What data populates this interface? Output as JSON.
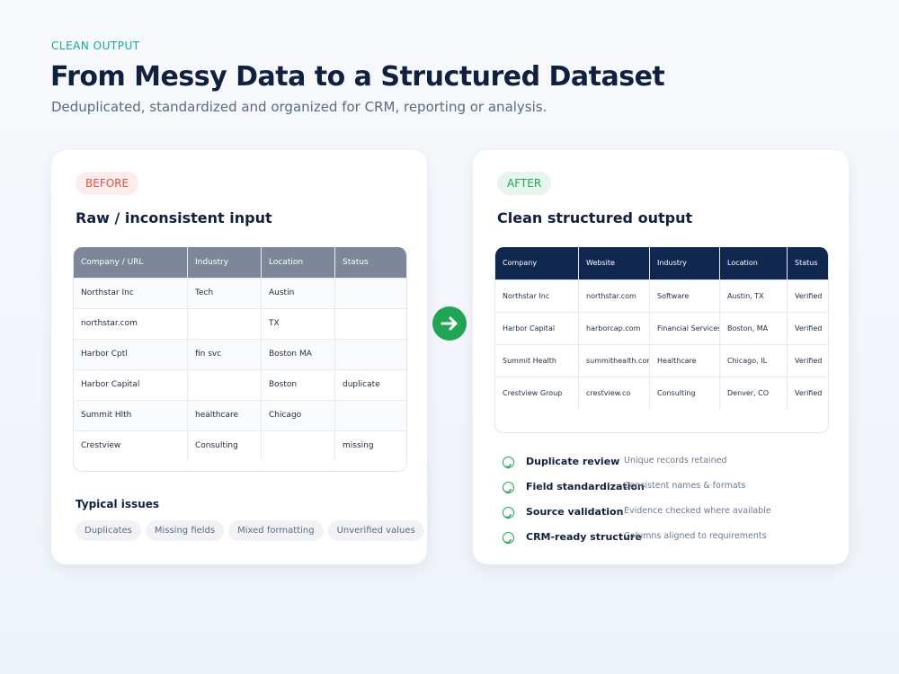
{
  "header": {
    "eyebrow": "CLEAN OUTPUT",
    "title": "From Messy Data to a Structured Dataset",
    "subtitle": "Deduplicated, standardized and organized for CRM, reporting or analysis."
  },
  "before": {
    "badge": "BEFORE",
    "title": "Raw / inconsistent input",
    "table": {
      "columns": [
        "Company / URL",
        "Industry",
        "Location",
        "Status"
      ],
      "rows": [
        [
          "Northstar Inc",
          "Tech",
          "Austin",
          null
        ],
        [
          "northstar.com",
          null,
          "TX",
          null
        ],
        [
          "Harbor Cptl",
          "fin svc",
          "Boston MA",
          null
        ],
        [
          "Harbor Capital",
          null,
          "Boston",
          "duplicate"
        ],
        [
          "Summit Hlth",
          "healthcare",
          "Chicago",
          null
        ],
        [
          "Crestview",
          "Consulting",
          null,
          "missing"
        ]
      ]
    },
    "issues_title": "Typical issues",
    "issues": [
      "Duplicates",
      "Missing fields",
      "Mixed formatting",
      "Unverified values"
    ]
  },
  "after": {
    "badge": "AFTER",
    "title": "Clean structured output",
    "table": {
      "columns": [
        "Company",
        "Website",
        "Industry",
        "Location",
        "Status"
      ],
      "rows": [
        [
          "Northstar Inc",
          "northstar.com",
          "Software",
          "Austin, TX",
          "Verified"
        ],
        [
          "Harbor Capital",
          "harborcap.com",
          "Financial Services",
          "Boston, MA",
          "Verified"
        ],
        [
          "Summit Health",
          "summithealth.com",
          "Healthcare",
          "Chicago, IL",
          "Verified"
        ],
        [
          "Crestview Group",
          "crestview.co",
          "Consulting",
          "Denver, CO",
          "Verified"
        ]
      ]
    },
    "checks": [
      {
        "label": "Duplicate review",
        "detail": "Unique records retained"
      },
      {
        "label": "Field standardization",
        "detail": "Consistent names & formats"
      },
      {
        "label": "Source validation",
        "detail": "Evidence checked where available"
      },
      {
        "label": "CRM-ready structure",
        "detail": "Columns aligned to requirements"
      }
    ]
  }
}
